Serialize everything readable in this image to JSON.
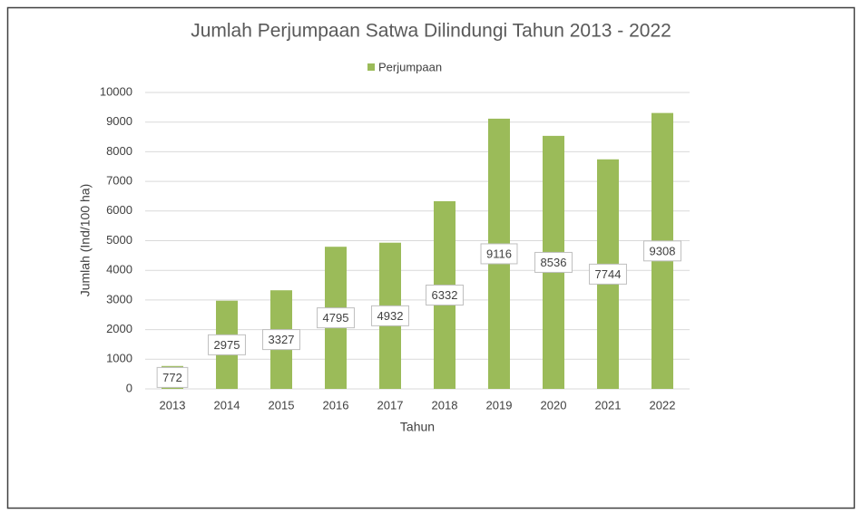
{
  "chart_data": {
    "type": "bar",
    "title": "Jumlah Perjumpaan Satwa Dilindungi Tahun 2013 - 2022",
    "x_label": "Tahun",
    "y_label": "Jumlah (Ind/100 ha)",
    "categories": [
      "2013",
      "2014",
      "2015",
      "2016",
      "2017",
      "2018",
      "2019",
      "2020",
      "2021",
      "2022"
    ],
    "series": [
      {
        "name": "Perjumpaan",
        "color": "#9bbb59",
        "values": [
          772,
          2975,
          3327,
          4795,
          4932,
          6332,
          9116,
          8536,
          7744,
          9308
        ]
      }
    ],
    "ylim": [
      0,
      10000
    ],
    "yticks": [
      0,
      1000,
      2000,
      3000,
      4000,
      5000,
      6000,
      7000,
      8000,
      9000,
      10000
    ],
    "grid": true,
    "legend": "top"
  }
}
